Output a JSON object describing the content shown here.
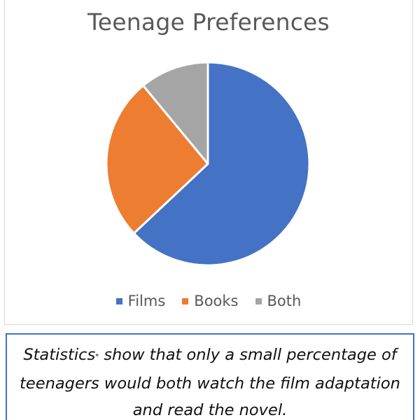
{
  "chart_data": {
    "type": "pie",
    "title": "Teenage Preferences",
    "categories": [
      "Films",
      "Books",
      "Both"
    ],
    "values": [
      63,
      26,
      11
    ],
    "colors": [
      "#4472c4",
      "#ed7d31",
      "#a5a5a5"
    ],
    "legend_position": "bottom",
    "start_angle_deg": 0
  },
  "caption": {
    "word_statistics": "Statistics",
    "asterisk": "*",
    "line1_rest": " show that only a small percentage of",
    "line2": "teenagers would both watch the film adaptation",
    "line3": "and read the novel."
  }
}
